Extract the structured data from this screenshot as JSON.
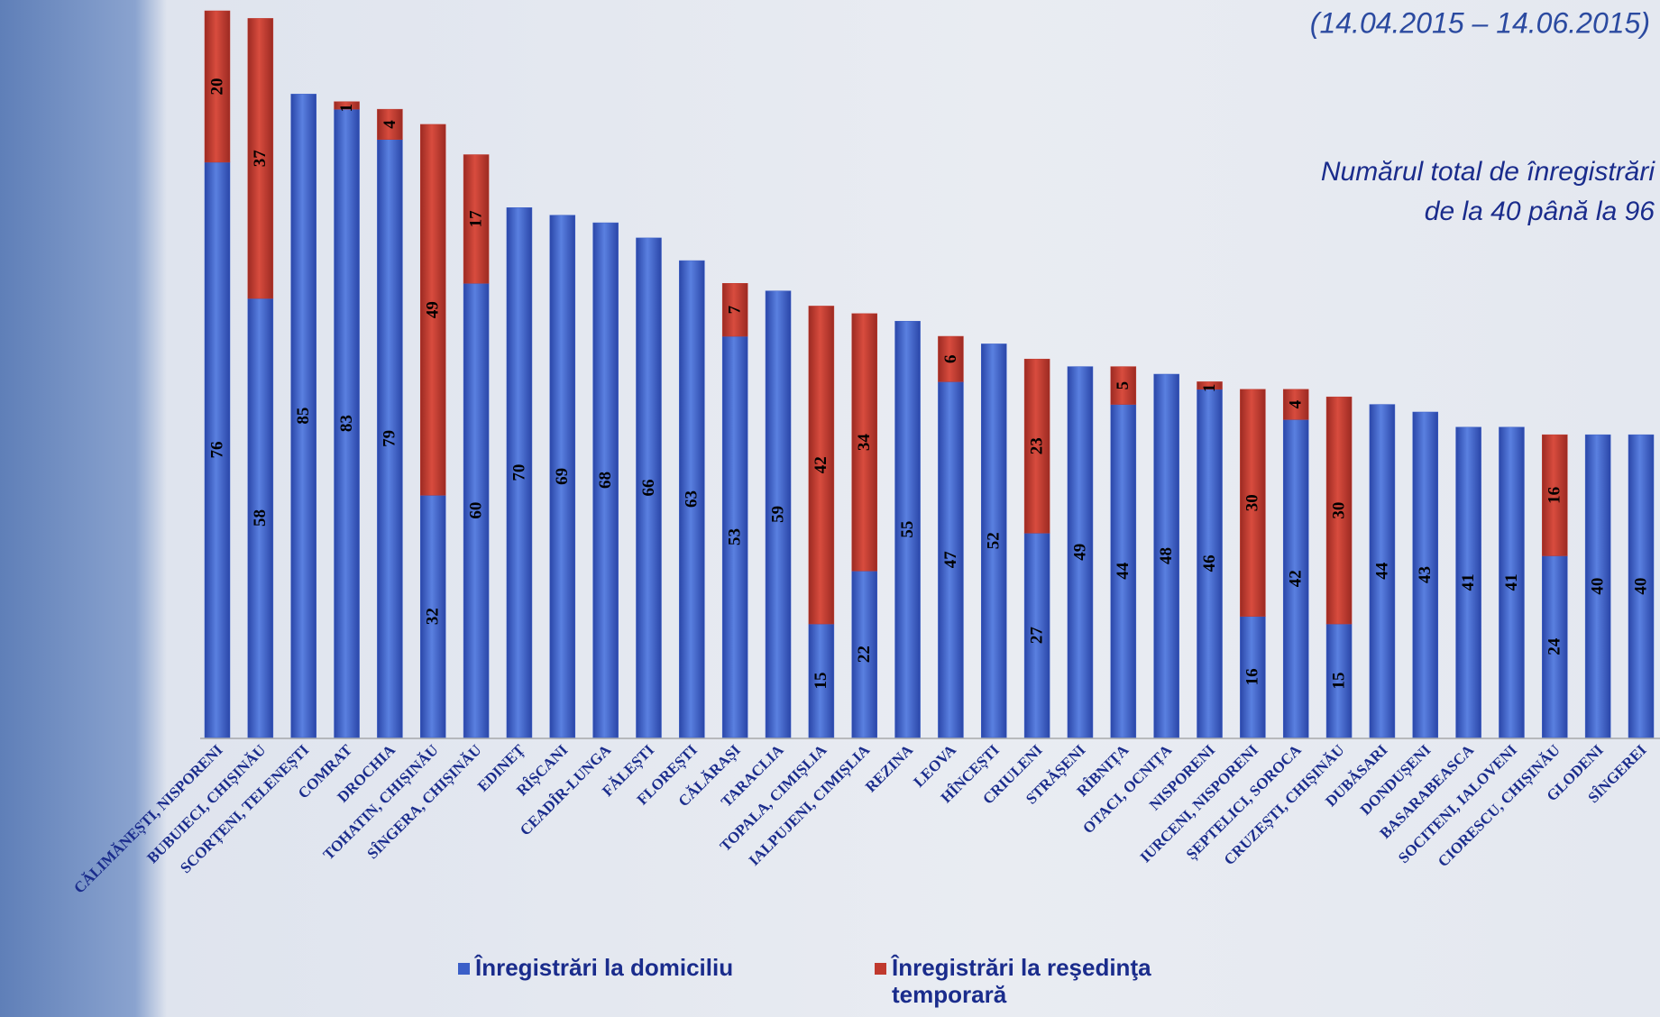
{
  "chart_data": {
    "type": "stacked-bar",
    "subtitle": "(14.04.2015 – 14.06.2015)",
    "annotation": [
      "Numărul total de înregistrări",
      "de la 40 până la 96"
    ],
    "categories": [
      "CĂLIMĂNEȘTI, NISPORENI",
      "BUBUIECI, CHIȘINĂU",
      "SCORȚENI, TELENEȘTI",
      "COMRAT",
      "DROCHIA",
      "TOHATIN, CHIȘINĂU",
      "SÎNGERA, CHIȘINĂU",
      "EDINEȚ",
      "RÎȘCANI",
      "CEADÎR-LUNGA",
      "FĂLEȘTI",
      "FLOREȘTI",
      "CĂLĂRAȘI",
      "TARACLIA",
      "TOPALA, CIMIȘLIA",
      "IALPUJENI, CIMIȘLIA",
      "REZINA",
      "LEOVA",
      "HÎNCEȘTI",
      "CRIULENI",
      "STRĂȘENI",
      "RÎBNIȚA",
      "OTACI, OCNIȚA",
      "NISPORENI",
      "IURCENI, NISPORENI",
      "ȘEPTELICI, SOROCA",
      "CRUZEȘTI, CHIȘINĂU",
      "DUBĂSARI",
      "DONDUȘENI",
      "BASARABEASCA",
      "SOCITENI, IALOVENI",
      "CIORESCU, CHIȘINĂU",
      "GLODENI",
      "SÎNGEREI"
    ],
    "series": [
      {
        "name": "Înregistrări la domiciliu",
        "color": "#3b5fc8",
        "values": [
          76,
          58,
          85,
          83,
          79,
          32,
          60,
          70,
          69,
          68,
          66,
          63,
          53,
          59,
          15,
          22,
          55,
          47,
          52,
          27,
          49,
          44,
          48,
          46,
          16,
          42,
          15,
          44,
          43,
          41,
          41,
          24,
          40,
          40
        ]
      },
      {
        "name": "Înregistrări la reşedinţa temporară",
        "color": "#c0392e",
        "values": [
          20,
          37,
          null,
          1,
          4,
          49,
          17,
          null,
          null,
          null,
          null,
          null,
          7,
          null,
          42,
          34,
          null,
          6,
          null,
          23,
          null,
          5,
          null,
          1,
          30,
          4,
          30,
          null,
          null,
          null,
          null,
          16,
          null,
          null
        ]
      }
    ],
    "ylim": [
      0,
      96
    ]
  }
}
